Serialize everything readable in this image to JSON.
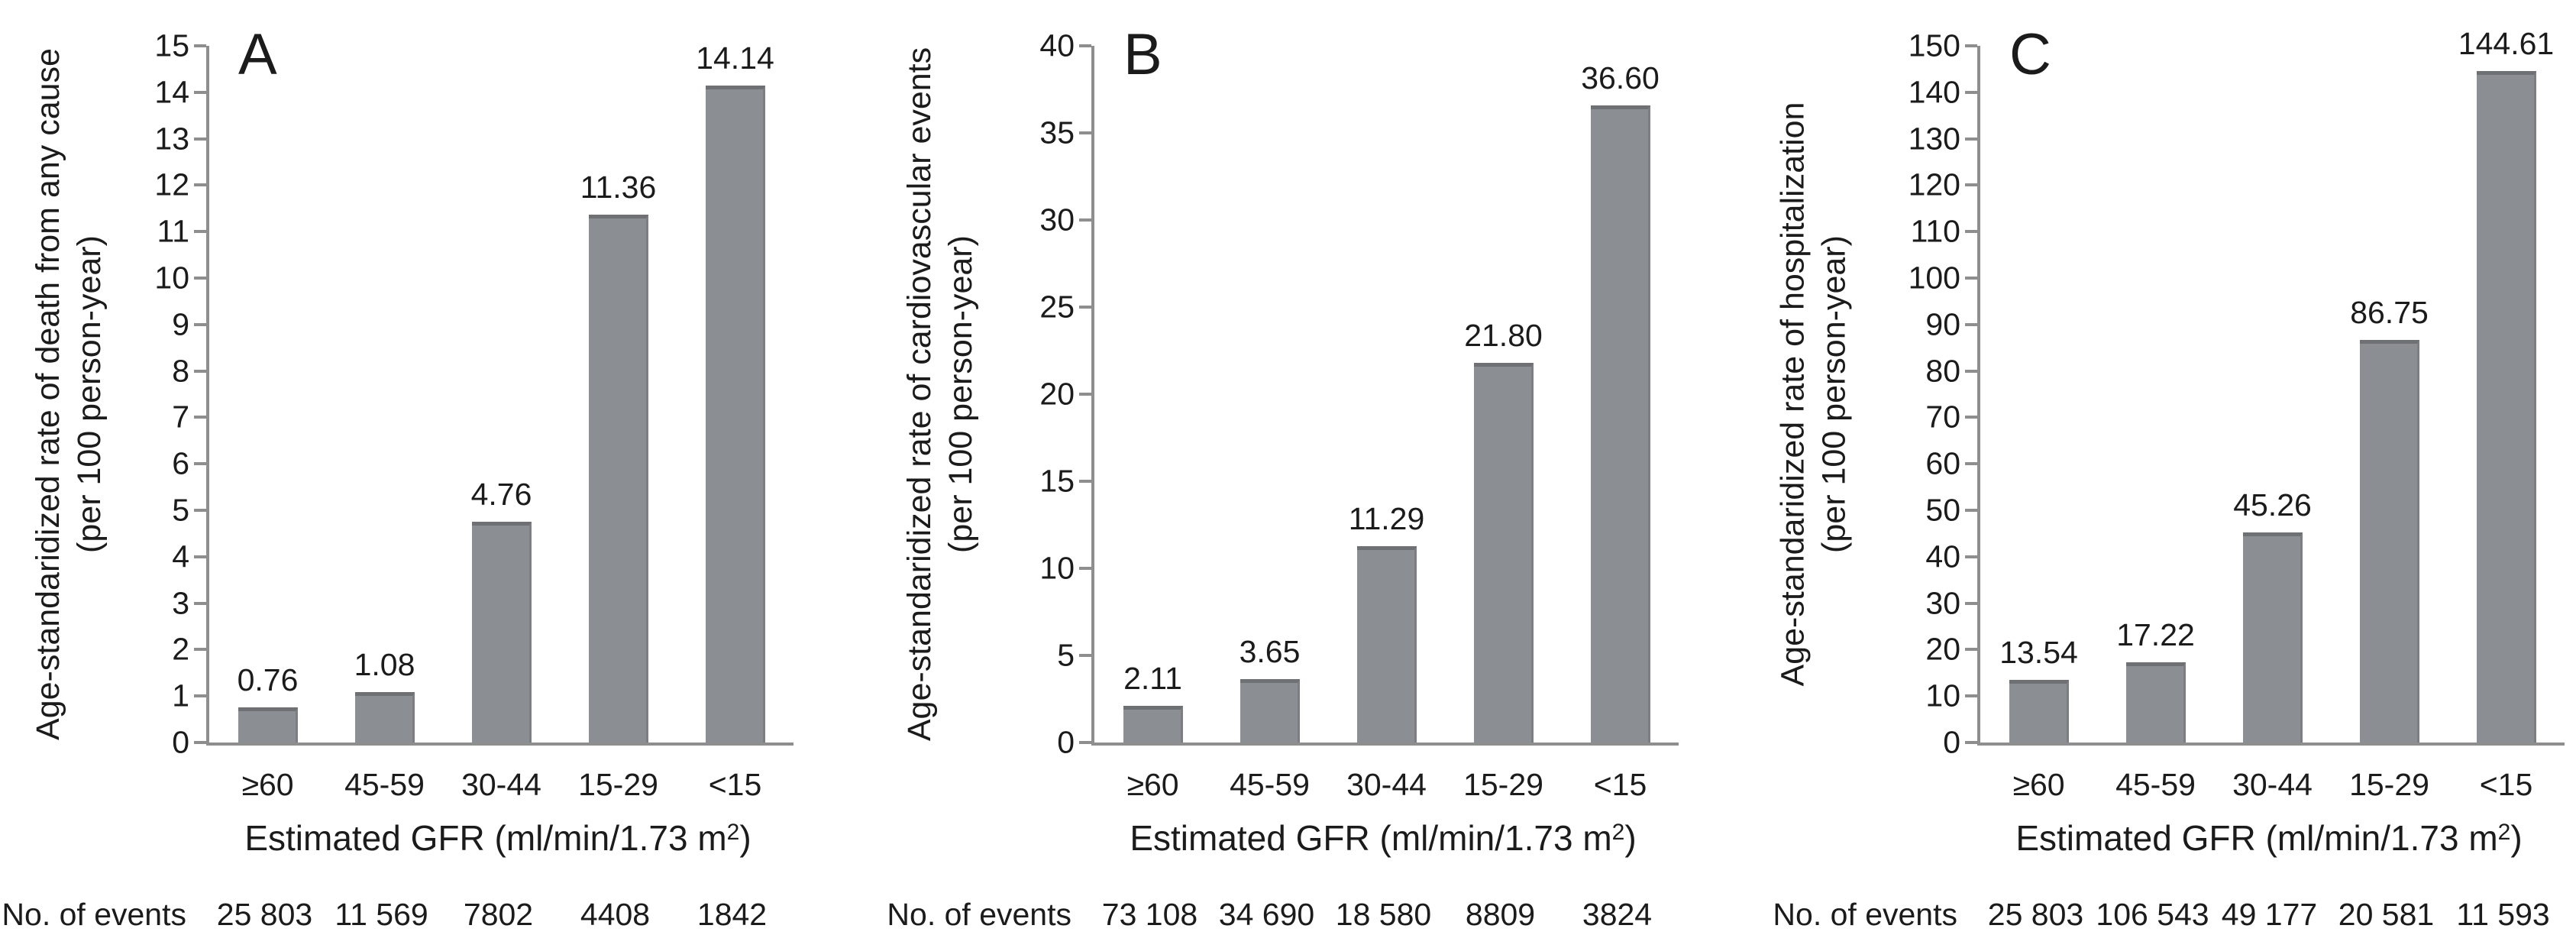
{
  "figure": {
    "events_label": "No. of events",
    "xlabel_main": "Estimated GFR (ml/min/1.73 m",
    "xlabel_sup": "2",
    "xlabel_close": ")",
    "bar_color": "#8b8e93",
    "bar_edge_color": "#6e7073",
    "bar_edge2_color": "#7c7e82",
    "axis_color": "#8e8e8e",
    "text_color": "#1b1b1b",
    "background_color": "#ffffff"
  },
  "chart_data": [
    {
      "type": "bar",
      "panel": "A",
      "ylabel_line1": "Age-standaridized rate of death from any cause",
      "ylabel_line2": "(per 100 person-year)",
      "xlabel": "Estimated GFR (ml/min/1.73 m2)",
      "categories": [
        "≥60",
        "45-59",
        "30-44",
        "15-29",
        "<15"
      ],
      "values": [
        0.76,
        1.08,
        4.76,
        11.36,
        14.14
      ],
      "value_labels": [
        "0.76",
        "1.08",
        "4.76",
        "11.36",
        "14.14"
      ],
      "no_of_events": [
        "25 803",
        "11 569",
        "7802",
        "4408",
        "1842"
      ],
      "ylim": [
        0,
        15
      ],
      "ytick_step": 1,
      "grid": false,
      "legend": "none"
    },
    {
      "type": "bar",
      "panel": "B",
      "ylabel_line1": "Age-standaridized rate of cardiovascular events",
      "ylabel_line2": "(per 100 person-year)",
      "xlabel": "Estimated GFR (ml/min/1.73 m2)",
      "categories": [
        "≥60",
        "45-59",
        "30-44",
        "15-29",
        "<15"
      ],
      "values": [
        2.11,
        3.65,
        11.29,
        21.8,
        36.6
      ],
      "value_labels": [
        "2.11",
        "3.65",
        "11.29",
        "21.80",
        "36.60"
      ],
      "no_of_events": [
        "73 108",
        "34 690",
        "18 580",
        "8809",
        "3824"
      ],
      "ylim": [
        0,
        40
      ],
      "ytick_step": 5,
      "grid": false,
      "legend": "none"
    },
    {
      "type": "bar",
      "panel": "C",
      "ylabel_line1": "Age-standaridized rate of hospitalization",
      "ylabel_line2": "(per 100 person-year)",
      "xlabel": "Estimated GFR (ml/min/1.73 m2)",
      "categories": [
        "≥60",
        "45-59",
        "30-44",
        "15-29",
        "<15"
      ],
      "values": [
        13.54,
        17.22,
        45.26,
        86.75,
        144.61
      ],
      "value_labels": [
        "13.54",
        "17.22",
        "45.26",
        "86.75",
        "144.61"
      ],
      "no_of_events": [
        "25 803",
        "106 543",
        "49 177",
        "20 581",
        "11 593"
      ],
      "ylim": [
        0,
        150
      ],
      "ytick_step": 10,
      "grid": false,
      "legend": "none"
    }
  ]
}
